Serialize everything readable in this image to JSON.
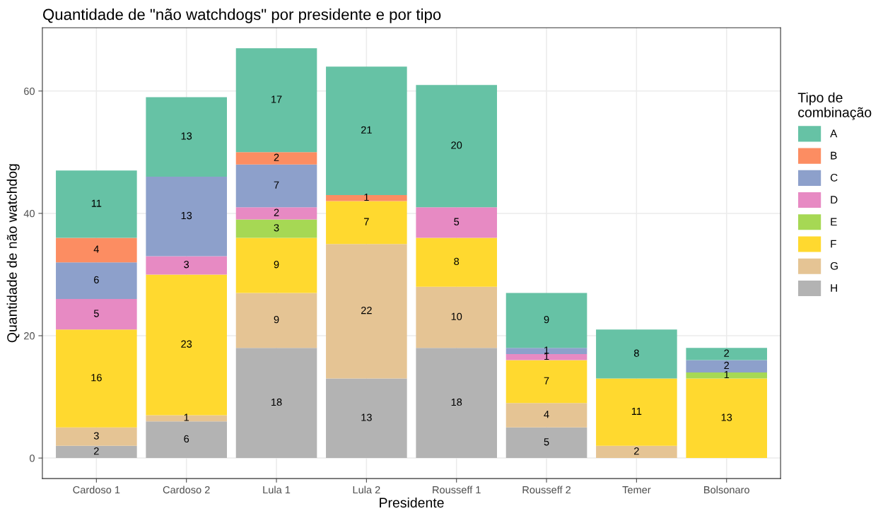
{
  "chart_data": {
    "type": "bar",
    "title": "Quantidade de \"não watchdogs\" por presidente e por tipo",
    "xlabel": "Presidente",
    "ylabel": "Quantidade de não watchdog",
    "legend_title": "Tipo de\ncombinação",
    "categories": [
      "Cardoso 1",
      "Cardoso 2",
      "Lula 1",
      "Lula 2",
      "Rousseff 1",
      "Rousseff 2",
      "Temer",
      "Bolsonaro"
    ],
    "stacked": true,
    "data_labels": true,
    "grid": true,
    "legend": "right",
    "ylim": [
      -3.35,
      70.35
    ],
    "yticks": [
      0,
      20,
      40,
      60
    ],
    "series": [
      {
        "name": "H",
        "color": "#b3b3b3",
        "values": [
          2,
          6,
          18,
          13,
          18,
          5,
          null,
          null
        ]
      },
      {
        "name": "G",
        "color": "#e5c494",
        "values": [
          3,
          1,
          9,
          22,
          10,
          4,
          2,
          null
        ]
      },
      {
        "name": "F",
        "color": "#ffd92f",
        "values": [
          16,
          23,
          9,
          7,
          8,
          7,
          11,
          13
        ]
      },
      {
        "name": "E",
        "color": "#a6d854",
        "values": [
          null,
          null,
          3,
          null,
          null,
          null,
          null,
          1
        ]
      },
      {
        "name": "D",
        "color": "#e78ac3",
        "values": [
          5,
          3,
          2,
          null,
          5,
          1,
          null,
          null
        ]
      },
      {
        "name": "C",
        "color": "#8da0cb",
        "values": [
          6,
          13,
          7,
          null,
          null,
          1,
          null,
          2
        ]
      },
      {
        "name": "B",
        "color": "#fc8d62",
        "values": [
          4,
          null,
          2,
          1,
          null,
          null,
          null,
          null
        ]
      },
      {
        "name": "A",
        "color": "#66c2a5",
        "values": [
          11,
          13,
          17,
          21,
          20,
          9,
          8,
          2
        ]
      }
    ]
  }
}
